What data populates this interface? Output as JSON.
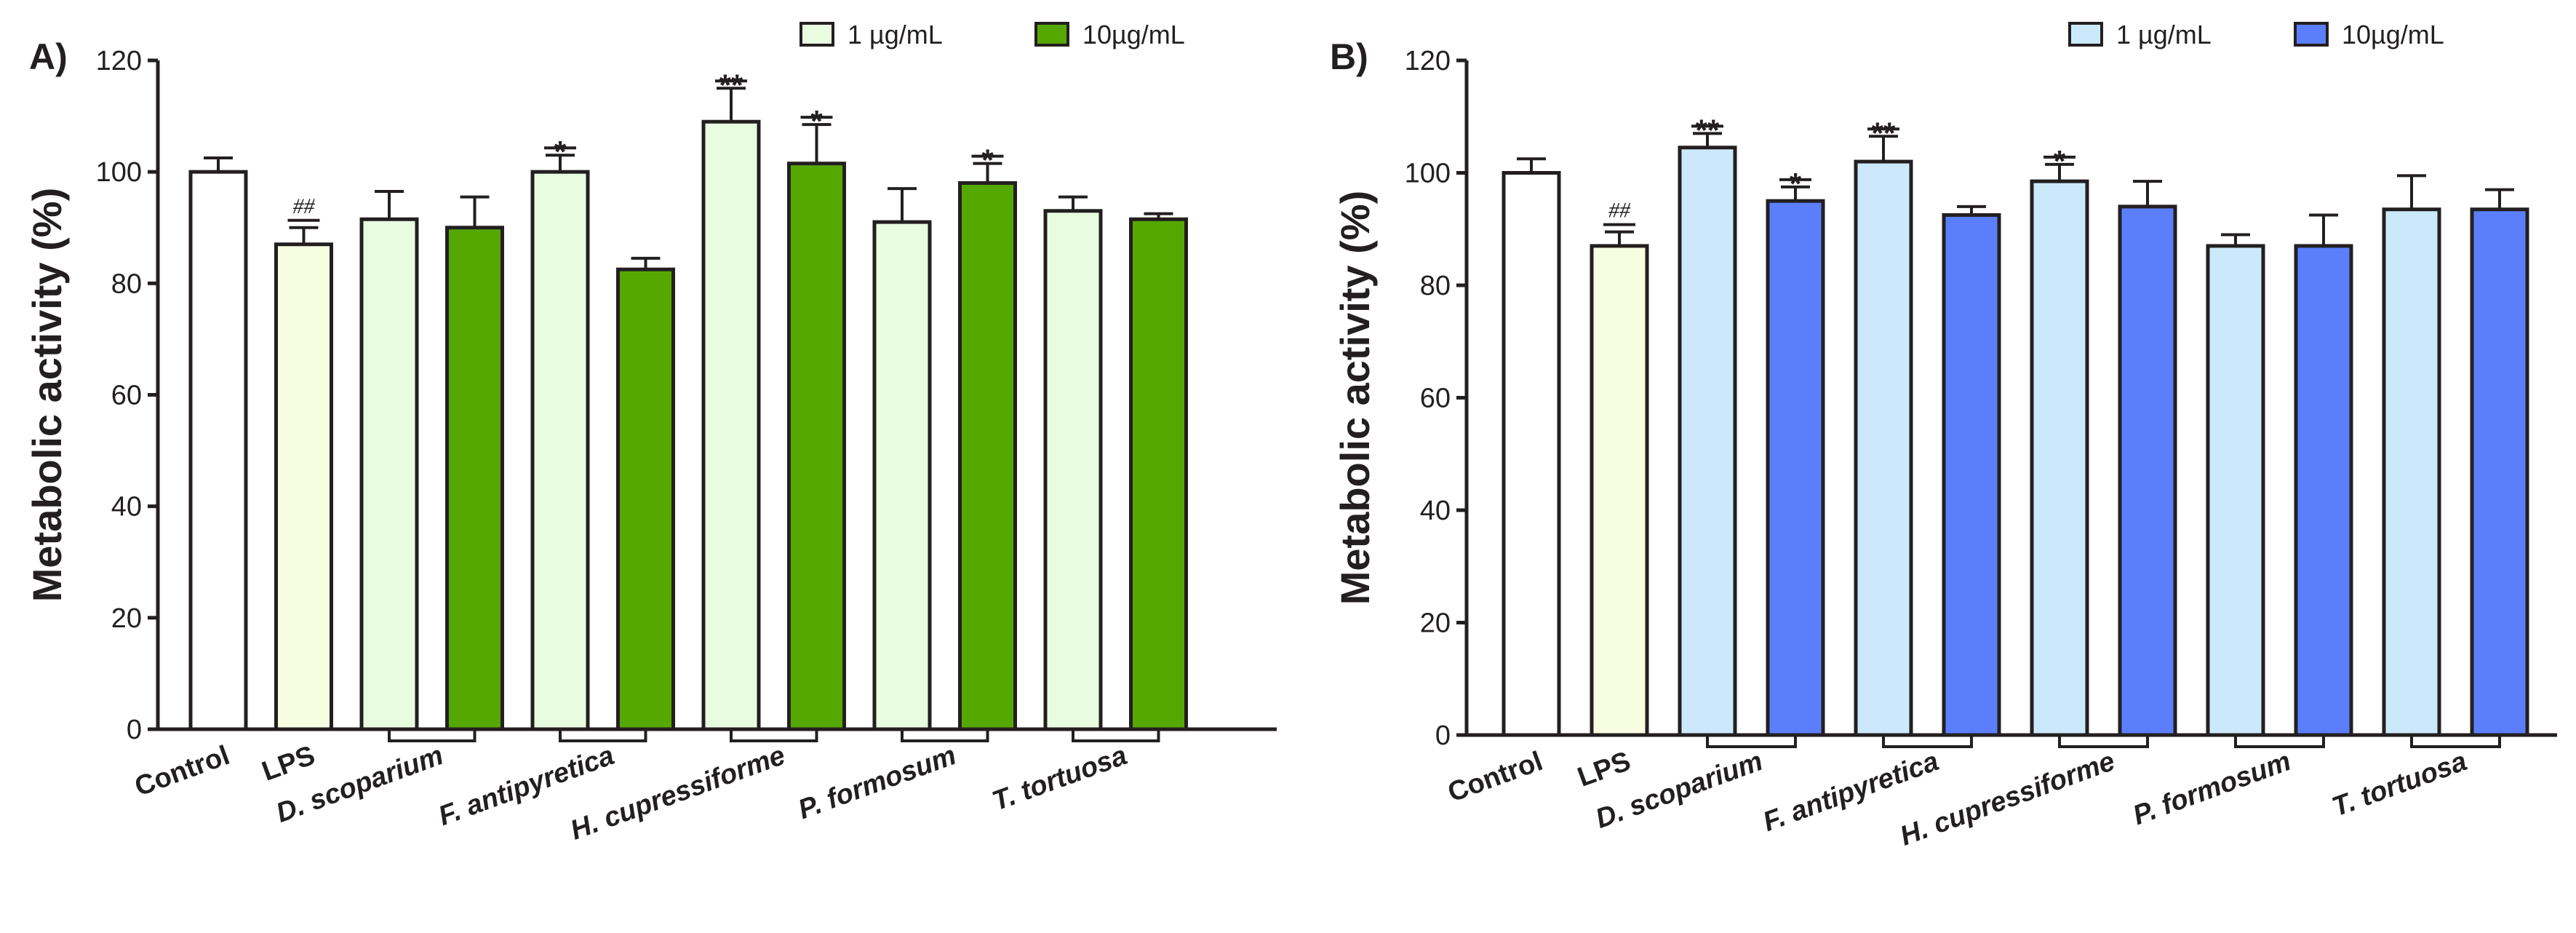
{
  "colors": {
    "control": "#ffffff",
    "lps": "#f7fde0",
    "panelA_low": "#e8fde0",
    "panelA_high": "#55a800",
    "panelB_low": "#cce9fb",
    "panelB_high": "#5b7ffb",
    "stroke": "#231f20"
  },
  "chart_data": [
    {
      "type": "bar",
      "panel_label": "A)",
      "ylabel": "Metabolic activity (%)",
      "ylim": [
        0,
        120
      ],
      "yticks": [
        0,
        20,
        40,
        60,
        80,
        100,
        120
      ],
      "legend": [
        "1 µg/mL",
        "10µg/mL"
      ],
      "categories": [
        "Control",
        "LPS",
        "D. scoparium",
        "F. antipyretica",
        "H. cupressiforme",
        "P. formosum",
        "T. tortuosa"
      ],
      "bars": [
        {
          "group": "Control",
          "series": "control",
          "value": 100,
          "error": 2.5,
          "annotation": ""
        },
        {
          "group": "LPS",
          "series": "lps",
          "value": 87,
          "error": 3,
          "annotation": "##"
        },
        {
          "group": "D. scoparium",
          "series": "1 µg/mL",
          "value": 91.5,
          "error": 5,
          "annotation": ""
        },
        {
          "group": "D. scoparium",
          "series": "10µg/mL",
          "value": 90,
          "error": 5.5,
          "annotation": ""
        },
        {
          "group": "F. antipyretica",
          "series": "1 µg/mL",
          "value": 100,
          "error": 3,
          "annotation": "*"
        },
        {
          "group": "F. antipyretica",
          "series": "10µg/mL",
          "value": 82.5,
          "error": 2,
          "annotation": ""
        },
        {
          "group": "H. cupressiforme",
          "series": "1 µg/mL",
          "value": 109,
          "error": 6,
          "annotation": "**"
        },
        {
          "group": "H. cupressiforme",
          "series": "10µg/mL",
          "value": 101.5,
          "error": 7,
          "annotation": "*"
        },
        {
          "group": "P. formosum",
          "series": "1 µg/mL",
          "value": 91,
          "error": 6,
          "annotation": ""
        },
        {
          "group": "P. formosum",
          "series": "10µg/mL",
          "value": 98,
          "error": 3.5,
          "annotation": "*"
        },
        {
          "group": "T. tortuosa",
          "series": "1 µg/mL",
          "value": 93,
          "error": 2.5,
          "annotation": ""
        },
        {
          "group": "T. tortuosa",
          "series": "10µg/mL",
          "value": 91.5,
          "error": 1,
          "annotation": ""
        }
      ]
    },
    {
      "type": "bar",
      "panel_label": "B)",
      "ylabel": "Metabolic activity (%)",
      "ylim": [
        0,
        120
      ],
      "yticks": [
        0,
        20,
        40,
        60,
        80,
        100,
        120
      ],
      "legend": [
        "1 µg/mL",
        "10µg/mL"
      ],
      "categories": [
        "Control",
        "LPS",
        "D. scoparium",
        "F. antipyretica",
        "H. cupressiforme",
        "P. formosum",
        "T. tortuosa"
      ],
      "bars": [
        {
          "group": "Control",
          "series": "control",
          "value": 100,
          "error": 2.5,
          "annotation": ""
        },
        {
          "group": "LPS",
          "series": "lps",
          "value": 87,
          "error": 2.5,
          "annotation": "##"
        },
        {
          "group": "D. scoparium",
          "series": "1 µg/mL",
          "value": 104.5,
          "error": 2.5,
          "annotation": "**"
        },
        {
          "group": "D. scoparium",
          "series": "10µg/mL",
          "value": 95,
          "error": 2.5,
          "annotation": "*"
        },
        {
          "group": "F. antipyretica",
          "series": "1 µg/mL",
          "value": 102,
          "error": 4.5,
          "annotation": "**"
        },
        {
          "group": "F. antipyretica",
          "series": "10µg/mL",
          "value": 92.5,
          "error": 1.5,
          "annotation": ""
        },
        {
          "group": "H. cupressiforme",
          "series": "1 µg/mL",
          "value": 98.5,
          "error": 3,
          "annotation": "*"
        },
        {
          "group": "H. cupressiforme",
          "series": "10µg/mL",
          "value": 94,
          "error": 4.5,
          "annotation": ""
        },
        {
          "group": "P. formosum",
          "series": "1 µg/mL",
          "value": 87,
          "error": 2,
          "annotation": ""
        },
        {
          "group": "P. formosum",
          "series": "10µg/mL",
          "value": 87,
          "error": 5.5,
          "annotation": ""
        },
        {
          "group": "T. tortuosa",
          "series": "1 µg/mL",
          "value": 93.5,
          "error": 6,
          "annotation": ""
        },
        {
          "group": "T. tortuosa",
          "series": "10µg/mL",
          "value": 93.5,
          "error": 3.5,
          "annotation": ""
        }
      ]
    }
  ]
}
